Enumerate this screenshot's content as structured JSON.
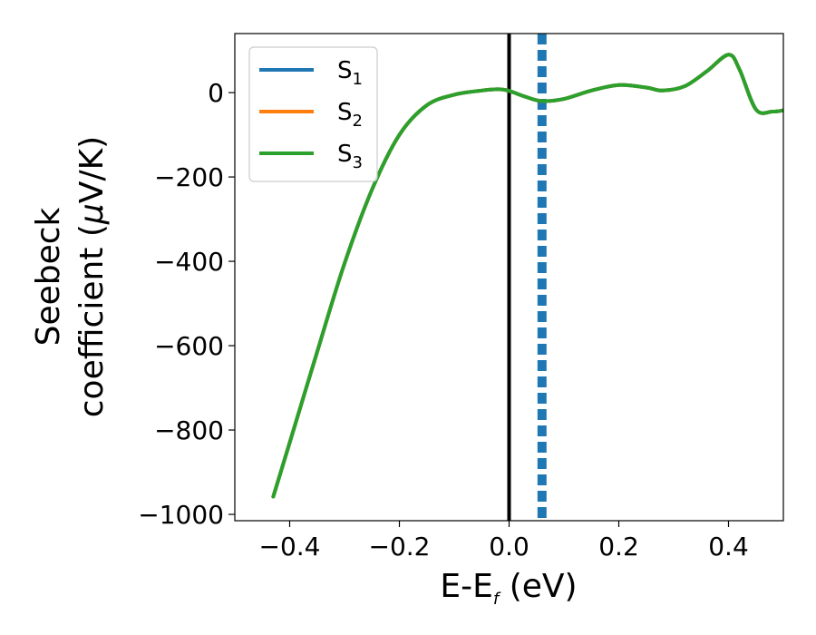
{
  "chart_data": {
    "type": "line",
    "xlabel": {
      "main": "E-E",
      "sub": "f",
      "unit": " (eV)"
    },
    "ylabel": {
      "line1": "Seebeck",
      "line2a": "coefficient  (",
      "mu": "μ",
      "line2b": "V/K)"
    },
    "xlim": [
      -0.5,
      0.5
    ],
    "ylim": [
      -1015,
      140
    ],
    "xticks": [
      -0.4,
      -0.2,
      0.0,
      0.2,
      0.4
    ],
    "xtick_labels": [
      "−0.4",
      "−0.2",
      "0.0",
      "0.2",
      "0.4"
    ],
    "yticks": [
      0,
      -200,
      -400,
      -600,
      -800,
      -1000
    ],
    "ytick_labels": [
      "0",
      "−200",
      "−400",
      "−600",
      "−800",
      "−1000"
    ],
    "legend_position": "upper-left",
    "series": [
      {
        "name": "S",
        "sub": "1",
        "color": "#1f77b4",
        "x": [
          -0.43,
          -0.4,
          -0.35,
          -0.3,
          -0.25,
          -0.2,
          -0.15,
          -0.1,
          -0.05,
          -0.02,
          0.0,
          0.03,
          0.06,
          0.1,
          0.15,
          0.2,
          0.25,
          0.28,
          0.32,
          0.36,
          0.4,
          0.42,
          0.45,
          0.48,
          0.5
        ],
        "y": [
          -958,
          -830,
          -615,
          -405,
          -230,
          -100,
          -30,
          -5,
          5,
          8,
          4,
          -10,
          -20,
          -15,
          5,
          18,
          12,
          5,
          15,
          50,
          90,
          55,
          -40,
          -45,
          -42
        ]
      },
      {
        "name": "S",
        "sub": "2",
        "color": "#ff7f0e",
        "x": [
          -0.43,
          -0.4,
          -0.35,
          -0.3,
          -0.25,
          -0.2,
          -0.15,
          -0.1,
          -0.05,
          -0.02,
          0.0,
          0.03,
          0.06,
          0.1,
          0.15,
          0.2,
          0.25,
          0.28,
          0.32,
          0.36,
          0.4,
          0.42,
          0.45,
          0.48,
          0.5
        ],
        "y": [
          -958,
          -830,
          -615,
          -405,
          -230,
          -100,
          -30,
          -5,
          5,
          8,
          4,
          -10,
          -20,
          -15,
          5,
          18,
          12,
          5,
          15,
          50,
          90,
          55,
          -40,
          -45,
          -42
        ]
      },
      {
        "name": "S",
        "sub": "3",
        "color": "#2ca02c",
        "x": [
          -0.43,
          -0.4,
          -0.35,
          -0.3,
          -0.25,
          -0.2,
          -0.15,
          -0.1,
          -0.05,
          -0.02,
          0.0,
          0.03,
          0.06,
          0.1,
          0.15,
          0.2,
          0.25,
          0.28,
          0.32,
          0.36,
          0.4,
          0.42,
          0.45,
          0.48,
          0.5
        ],
        "y": [
          -958,
          -830,
          -615,
          -405,
          -230,
          -100,
          -30,
          -5,
          5,
          8,
          4,
          -10,
          -20,
          -15,
          5,
          18,
          12,
          5,
          15,
          50,
          90,
          55,
          -40,
          -45,
          -42
        ]
      }
    ],
    "vlines": [
      {
        "x": 0.0,
        "style": "solid",
        "color": "#000000"
      },
      {
        "x": 0.06,
        "style": "dashed",
        "color": "#1f77b4"
      }
    ]
  }
}
